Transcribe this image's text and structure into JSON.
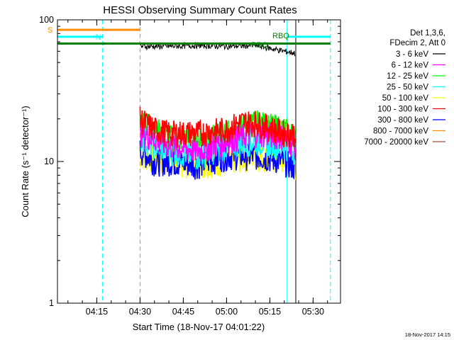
{
  "chart_data": {
    "type": "line",
    "title": "HESSI Observing Summary Count Rates",
    "xlabel": "Start Time (18-Nov-17 04:01:22)",
    "ylabel": "Count Rate (s⁻¹ detector⁻¹)",
    "y_scale": "log",
    "xlim": [
      "04:01:22",
      "05:39:30"
    ],
    "ylim": [
      1,
      100
    ],
    "x_ticks": [
      "04:15",
      "04:30",
      "04:45",
      "05:00",
      "05:15",
      "05:30"
    ],
    "y_ticks": [
      "1",
      "10",
      "100"
    ],
    "grid": false,
    "legend_placement": "right",
    "legend_header": [
      "Det 1,3,6,",
      "FDecim 2, Att 0"
    ],
    "footer_timestamp": "18-Nov-2017 14:15",
    "series": [
      {
        "name": "3 - 6 keV",
        "color": "#000000",
        "x": [
          "04:30",
          "04:40",
          "04:50",
          "05:00",
          "05:10",
          "05:20",
          "05:24"
        ],
        "values": [
          65,
          65,
          66,
          65,
          66,
          60,
          58
        ]
      },
      {
        "name": "6 - 12 keV",
        "color": "#ff00ff",
        "x": [
          "04:30",
          "04:40",
          "04:50",
          "05:00",
          "05:10",
          "05:20",
          "05:24"
        ],
        "values": [
          16,
          13,
          12,
          14,
          16,
          15,
          13
        ]
      },
      {
        "name": "12 - 25 keV",
        "color": "#00ff00",
        "x": [
          "04:30",
          "04:35",
          "04:40",
          "04:50",
          "05:00",
          "05:10",
          "05:20",
          "05:24"
        ],
        "values": [
          20,
          17,
          15,
          14,
          16,
          19,
          17,
          15
        ]
      },
      {
        "name": "25 - 50 keV",
        "color": "#00ffff",
        "x": [
          "04:30",
          "04:35",
          "04:40",
          "04:50",
          "05:00",
          "05:10",
          "05:20",
          "05:24"
        ],
        "values": [
          15,
          13,
          12,
          11,
          13,
          14,
          13,
          12
        ]
      },
      {
        "name": "50 - 100 keV",
        "color": "#ffff00",
        "x": [
          "04:30",
          "04:40",
          "04:50",
          "05:00",
          "05:10",
          "05:20",
          "05:24"
        ],
        "values": [
          11,
          10,
          9.5,
          10,
          11,
          10,
          9
        ]
      },
      {
        "name": "100 - 300 keV",
        "color": "#ff0000",
        "x": [
          "04:30",
          "04:35",
          "04:40",
          "04:50",
          "05:00",
          "05:05",
          "05:10",
          "05:20",
          "05:24"
        ],
        "values": [
          20,
          17,
          16,
          16,
          17,
          19,
          19,
          16,
          16
        ]
      },
      {
        "name": "300 - 800 keV",
        "color": "#0000ff",
        "x": [
          "04:30",
          "04:35",
          "04:40",
          "04:50",
          "05:00",
          "05:10",
          "05:20",
          "05:24"
        ],
        "values": [
          12,
          10,
          10,
          9.5,
          11,
          11,
          10,
          9
        ]
      },
      {
        "name": "800 - 7000 keV",
        "color": "#ff8c00",
        "x": [
          "04:30",
          "04:35",
          "04:40",
          "04:50",
          "05:00",
          "05:10",
          "05:20",
          "05:24"
        ],
        "values": [
          7,
          5.5,
          5,
          5,
          5.5,
          5.5,
          5.5,
          5
        ]
      },
      {
        "name": "7000 - 20000 keV",
        "color": "#a0522d",
        "x": [],
        "values": []
      }
    ],
    "flag_bars": [
      {
        "label": "S",
        "color": "#ff8c00",
        "start": "04:01:22",
        "end": "04:30",
        "level": 85
      },
      {
        "label": "N",
        "color": "#00ffff",
        "start": "04:01:22",
        "end": "04:17",
        "level": 76
      },
      {
        "label": "",
        "color": "#00ffff",
        "start": "05:21",
        "end": "05:36",
        "level": 76
      },
      {
        "label": "",
        "color": "#008000",
        "start": "04:01:22",
        "end": "05:36",
        "level": 68
      }
    ],
    "segment_labels": [
      "RBQ",
      "RBQ"
    ],
    "vertical_markers": [
      {
        "time": "04:01:22",
        "color": "#00ffff",
        "style": "solid"
      },
      {
        "time": "04:17",
        "color": "#00ffff",
        "style": "dashed"
      },
      {
        "time": "04:30",
        "color": "#ff8c00",
        "style": "dashed"
      },
      {
        "time": "05:21",
        "color": "#00ffff",
        "style": "solid"
      },
      {
        "time": "05:24",
        "color": "#000000",
        "style": "solid"
      },
      {
        "time": "05:36",
        "color": "#00ffff",
        "style": "dashed"
      }
    ]
  }
}
